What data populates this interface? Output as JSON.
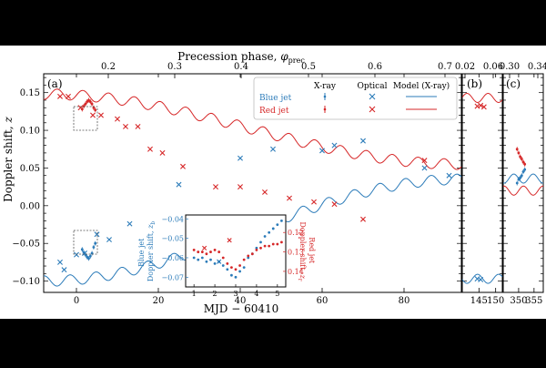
{
  "chart_data": {
    "type": "scatter",
    "title": "",
    "top_axis_label": "Precession phase, φ_prec",
    "top_axis_label_main": "Precession phase, ",
    "top_axis_label_sym": "φ",
    "top_axis_label_sub": "prec",
    "xlabel": "MJD − 60410",
    "ylabel": "Doppler shift, z",
    "ylabel_main": "Doppler shift, ",
    "ylabel_sym": "z",
    "panels": [
      {
        "id": "a",
        "label": "(a)",
        "xlim": [
          -8,
          94
        ],
        "ylim": [
          -0.115,
          0.175
        ],
        "x_ticks": [
          "0",
          "20",
          "40",
          "60",
          "80"
        ],
        "x_tick_values": [
          0,
          20,
          40,
          60,
          80
        ],
        "top_ticks": [
          "0.2",
          "0.3",
          "0.4",
          "0.5",
          "0.6",
          "0.7"
        ],
        "top_tick_values": [
          0.2,
          0.3,
          0.4,
          0.5,
          0.6,
          0.7
        ],
        "y_ticks": [
          "−0.10",
          "−0.05",
          "0.00",
          "0.05",
          "0.10",
          "0.15"
        ],
        "y_tick_values": [
          -0.1,
          -0.05,
          0.0,
          0.05,
          0.1,
          0.15
        ]
      },
      {
        "id": "b",
        "label": "(b)",
        "xlim": [
          140,
          152
        ],
        "x_ticks": [
          "145",
          "150"
        ],
        "x_tick_values": [
          145,
          150
        ],
        "top_ticks": [
          "0.02",
          "0.06"
        ],
        "top_tick_values": [
          0.02,
          0.06
        ]
      },
      {
        "id": "c",
        "label": "(c)",
        "xlim": [
          345,
          358
        ],
        "x_ticks": [
          "350",
          "355"
        ],
        "x_tick_values": [
          350,
          355
        ],
        "top_ticks": [
          "0.30",
          "0.34"
        ],
        "top_tick_values": [
          0.3,
          0.34
        ]
      }
    ],
    "legend": {
      "columns": [
        "X-ray",
        "Optical",
        "Model (X-ray)"
      ],
      "rows": [
        "Blue jet",
        "Red jet"
      ],
      "placement": "upper-right",
      "colors": {
        "blue": "#2b7bb9",
        "red": "#d62728"
      }
    },
    "model": {
      "red": {
        "type": "decaying trend with nodding wobble",
        "start": 0.148,
        "end": 0.055,
        "period_days": 6.3,
        "amplitude": 0.007
      },
      "blue": {
        "type": "rising trend with nodding wobble",
        "start": -0.1,
        "end": 0.035,
        "period_days": 6.3,
        "amplitude": 0.007
      }
    },
    "series": [
      {
        "name": "Red jet optical",
        "panel": "a",
        "marker": "x",
        "x": [
          -4,
          -2,
          1,
          4,
          6,
          10,
          12,
          15,
          18,
          21,
          26,
          34,
          40,
          46,
          52,
          58,
          63,
          70,
          85
        ],
        "y": [
          0.145,
          0.145,
          0.13,
          0.12,
          0.12,
          0.115,
          0.105,
          0.105,
          0.075,
          0.07,
          0.052,
          0.025,
          0.025,
          0.018,
          0.01,
          0.005,
          0.002,
          -0.018,
          0.06
        ]
      },
      {
        "name": "Blue jet optical",
        "panel": "a",
        "marker": "x",
        "x": [
          -4,
          -3,
          0,
          2,
          5,
          8,
          13,
          25,
          40,
          48,
          60,
          63,
          70,
          85,
          91
        ],
        "y": [
          -0.075,
          -0.085,
          -0.065,
          -0.063,
          -0.038,
          -0.045,
          -0.024,
          0.028,
          0.063,
          0.075,
          0.073,
          0.08,
          0.086,
          0.05,
          0.04
        ]
      },
      {
        "name": "Red jet X-ray",
        "panel": "a",
        "marker": "dot",
        "x": [
          1.4,
          1.8,
          2.2,
          2.6,
          3.0,
          3.4,
          3.8,
          4.2,
          4.6
        ],
        "y": [
          0.128,
          0.132,
          0.135,
          0.138,
          0.14,
          0.138,
          0.135,
          0.13,
          0.127
        ]
      },
      {
        "name": "Blue jet X-ray",
        "panel": "a",
        "marker": "dot",
        "x": [
          1.4,
          1.8,
          2.2,
          2.6,
          3.0,
          3.4,
          3.8,
          4.2,
          4.6
        ],
        "y": [
          -0.058,
          -0.062,
          -0.065,
          -0.068,
          -0.07,
          -0.067,
          -0.063,
          -0.055,
          -0.05
        ]
      },
      {
        "name": "Red jet optical (b)",
        "panel": "b",
        "marker": "x",
        "x": [
          144.5,
          145.5,
          146.5
        ],
        "y": [
          0.132,
          0.133,
          0.131
        ]
      },
      {
        "name": "Blue jet optical (b)",
        "panel": "b",
        "marker": "x",
        "x": [
          144.5,
          145.5
        ],
        "y": [
          -0.097,
          -0.098
        ]
      },
      {
        "name": "Red jet X-ray (c)",
        "panel": "c",
        "marker": "dot",
        "x": [
          349.5,
          350,
          350.5,
          351,
          351.5,
          352
        ],
        "y": [
          0.075,
          0.07,
          0.065,
          0.062,
          0.058,
          0.055
        ]
      },
      {
        "name": "Blue jet X-ray (c)",
        "panel": "c",
        "marker": "dot",
        "x": [
          349.5,
          350,
          350.5,
          351,
          351.5,
          352
        ],
        "y": [
          0.03,
          0.035,
          0.037,
          0.04,
          0.045,
          0.048
        ]
      }
    ],
    "inset": {
      "x_ticks": [
        "1",
        "2",
        "3",
        "4",
        "5"
      ],
      "x_tick_values": [
        1,
        2,
        3,
        4,
        5
      ],
      "xlim": [
        0.6,
        5.4
      ],
      "blue_ylim": [
        -0.075,
        -0.038
      ],
      "blue_y_ticks": [
        "−0.04",
        "−0.05",
        "−0.06",
        "−0.07"
      ],
      "blue_y_tick_values": [
        -0.04,
        -0.05,
        -0.06,
        -0.07
      ],
      "red_ylim": [
        0.111,
        0.148
      ],
      "red_y_ticks": [
        "0.12",
        "0.13",
        "0.14"
      ],
      "red_y_tick_values": [
        0.12,
        0.13,
        0.14
      ],
      "blue_ylabel_line1": "Blue jet",
      "blue_ylabel_line2": "Doppler shift, z_b",
      "blue_ylabel_line2_main": "Doppler shift, ",
      "blue_ylabel_line2_sym": "z",
      "blue_ylabel_line2_sub": "b",
      "red_ylabel_line1": "Red jet",
      "red_ylabel_line2": "Doppler shift, z_r",
      "red_ylabel_line2_main": "Doppler shift, ",
      "red_ylabel_line2_sym": "z",
      "red_ylabel_line2_sub": "r",
      "blue_x": [
        1.0,
        1.2,
        1.4,
        1.6,
        1.8,
        2.0,
        2.2,
        2.4,
        2.6,
        2.8,
        3.0,
        3.2,
        3.4,
        3.6,
        3.8,
        4.0,
        4.2,
        4.4,
        4.6,
        4.8,
        5.0,
        5.2
      ],
      "blue_y": [
        -0.06,
        -0.061,
        -0.06,
        -0.062,
        -0.061,
        -0.063,
        -0.062,
        -0.064,
        -0.066,
        -0.069,
        -0.07,
        -0.067,
        -0.065,
        -0.06,
        -0.058,
        -0.055,
        -0.052,
        -0.049,
        -0.047,
        -0.045,
        -0.043,
        -0.041
      ],
      "red_x": [
        1.0,
        1.2,
        1.4,
        1.6,
        1.8,
        2.0,
        2.2,
        2.4,
        2.6,
        2.8,
        3.0,
        3.2,
        3.4,
        3.6,
        3.8,
        4.0,
        4.2,
        4.4,
        4.6,
        4.8,
        5.0,
        5.2
      ],
      "red_y": [
        0.129,
        0.13,
        0.13,
        0.131,
        0.13,
        0.129,
        0.13,
        0.133,
        0.136,
        0.138,
        0.139,
        0.137,
        0.134,
        0.132,
        0.131,
        0.129,
        0.128,
        0.127,
        0.127,
        0.126,
        0.126,
        0.125
      ],
      "optical_blue_x": [
        2.2
      ],
      "optical_blue_y": [
        -0.062
      ],
      "optical_red_x": [
        1.5,
        2.7
      ],
      "optical_red_y": [
        0.128,
        0.124
      ]
    }
  }
}
